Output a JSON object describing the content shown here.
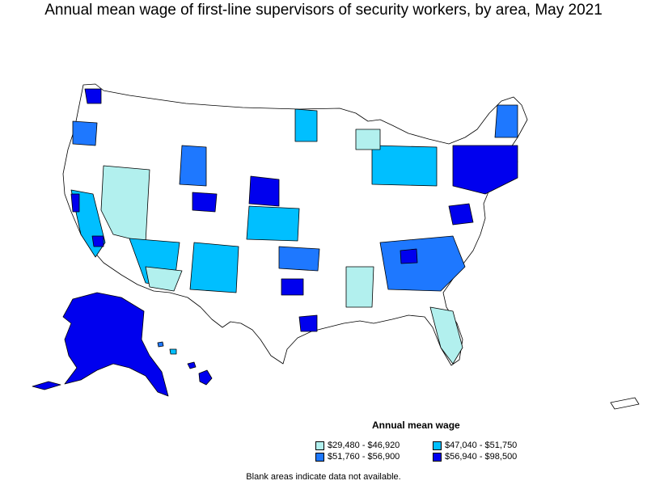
{
  "title": "Annual mean wage of first-line supervisors of security workers, by area, May 2021",
  "legend": {
    "title": "Annual mean wage",
    "items": [
      {
        "label": "$29,480 - $46,920",
        "color": "#b2f0ee"
      },
      {
        "label": "$47,040 - $51,750",
        "color": "#00bfff"
      },
      {
        "label": "$51,760 - $56,900",
        "color": "#1e78ff"
      },
      {
        "label": "$56,940 - $98,500",
        "color": "#0000ee"
      }
    ]
  },
  "note": "Blank areas indicate data not available.",
  "colors": {
    "border": "#000000",
    "blank": "#ffffff"
  }
}
